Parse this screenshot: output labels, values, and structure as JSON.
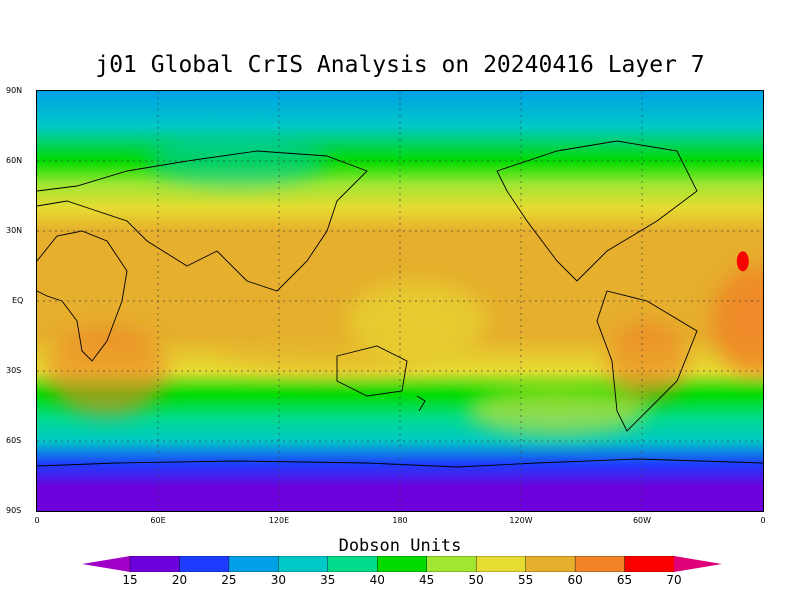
{
  "title": "j01 Global CrIS Analysis on 20240416 Layer 7",
  "colorbar": {
    "title": "Dobson Units",
    "labels": [
      "15",
      "20",
      "25",
      "30",
      "35",
      "40",
      "45",
      "50",
      "55",
      "60",
      "65",
      "70"
    ],
    "colors": [
      "#a000c8",
      "#6e00dc",
      "#1e3cff",
      "#00a0e6",
      "#00c8c8",
      "#00dc8c",
      "#00dc00",
      "#a0e632",
      "#e6dc32",
      "#e6af2d",
      "#f08228",
      "#fa0000",
      "#e0007a"
    ]
  },
  "axes": {
    "y_labels": [
      "90N",
      "60N",
      "30N",
      "EQ",
      "30S",
      "60S",
      "90S"
    ],
    "x_labels": [
      "0",
      "60E",
      "120E",
      "180",
      "120W",
      "60W",
      "0"
    ]
  },
  "chart_data": {
    "type": "heatmap",
    "title": "j01 Global CrIS Analysis on 20240416 Layer 7",
    "units": "Dobson Units",
    "xlim": [
      0,
      360
    ],
    "ylim": [
      -90,
      90
    ],
    "latitude_profile": [
      {
        "lat": 90,
        "value": 28
      },
      {
        "lat": 75,
        "value": 33
      },
      {
        "lat": 60,
        "value": 40
      },
      {
        "lat": 50,
        "value": 45
      },
      {
        "lat": 40,
        "value": 51
      },
      {
        "lat": 30,
        "value": 56
      },
      {
        "lat": 15,
        "value": 58
      },
      {
        "lat": 0,
        "value": 57
      },
      {
        "lat": -15,
        "value": 55
      },
      {
        "lat": -30,
        "value": 52
      },
      {
        "lat": -40,
        "value": 44
      },
      {
        "lat": -50,
        "value": 38
      },
      {
        "lat": -60,
        "value": 32
      },
      {
        "lat": -70,
        "value": 24
      },
      {
        "lat": -80,
        "value": 19
      },
      {
        "lat": -90,
        "value": 18
      }
    ],
    "maximum": {
      "lon": 350,
      "lat": 17,
      "value": 66
    },
    "grid": true
  }
}
